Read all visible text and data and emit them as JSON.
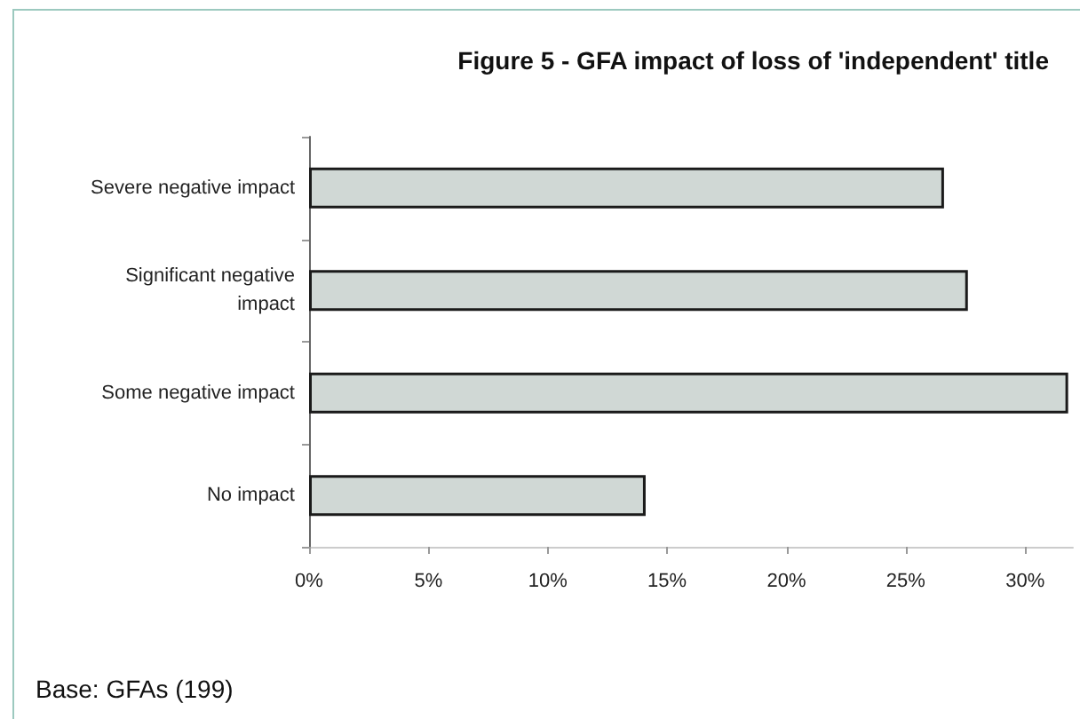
{
  "chart_data": {
    "type": "bar",
    "orientation": "horizontal",
    "title": "Figure 5 - GFA impact of loss of 'independent' title",
    "categories": [
      "Severe negative impact",
      "Significant negative\nimpact",
      "Some negative impact",
      "No impact"
    ],
    "values": [
      26.6,
      27.6,
      31.8,
      14.1
    ],
    "color": "#d0d8d5",
    "xlim": [
      0,
      32
    ],
    "xticks": [
      {
        "value": 0,
        "label": "0%"
      },
      {
        "value": 5,
        "label": "5%"
      },
      {
        "value": 10,
        "label": "10%"
      },
      {
        "value": 15,
        "label": "15%"
      },
      {
        "value": 20,
        "label": "20%"
      },
      {
        "value": 25,
        "label": "25%"
      },
      {
        "value": 30,
        "label": "30%"
      }
    ],
    "annotations": [
      "Base: GFAs (199)"
    ],
    "grid": false
  }
}
